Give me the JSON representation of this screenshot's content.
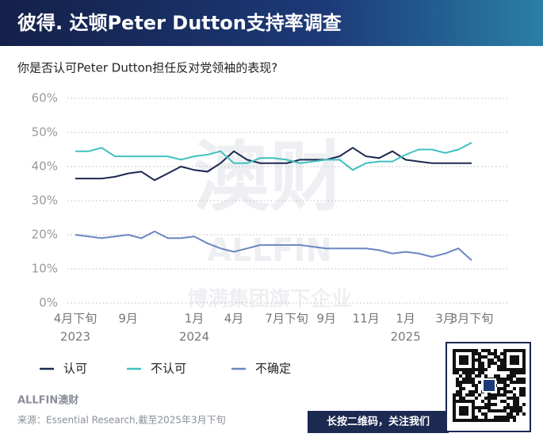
{
  "chart_data": {
    "type": "line",
    "title": "彼得. 达顿Peter Dutton支持率调查",
    "subtitle": "你是否认可Peter Dutton担任反对党领袖的表现?",
    "categories": [
      "4月下旬",
      null,
      null,
      null,
      "9月",
      null,
      null,
      null,
      null,
      "1月",
      null,
      null,
      "4月",
      null,
      null,
      null,
      "7月下旬",
      null,
      null,
      "9月",
      null,
      null,
      "11月",
      null,
      null,
      "1月",
      null,
      null,
      "3月",
      null,
      "3月下旬"
    ],
    "years": [
      "2023",
      "2024",
      "2025"
    ],
    "series": [
      {
        "name": "认可",
        "color": "#1c2951",
        "values": [
          36.5,
          36.5,
          36.5,
          37,
          38,
          38.5,
          36,
          38,
          40,
          39,
          38.5,
          41,
          44.5,
          42,
          41,
          41,
          41,
          42,
          42,
          42,
          43,
          45.5,
          43,
          42.5,
          44.5,
          42,
          41.5,
          41,
          41,
          41,
          41
        ]
      },
      {
        "name": "不认可",
        "color": "#3fc1c0",
        "values": [
          44.5,
          44.5,
          45.5,
          43,
          43,
          43,
          43,
          43,
          42,
          43,
          43.5,
          44.5,
          41,
          41,
          42.5,
          42.5,
          42,
          41,
          41.5,
          42,
          42,
          39,
          41,
          41.5,
          41.5,
          43.5,
          45,
          45,
          44,
          45,
          47
        ]
      },
      {
        "name": "不确定",
        "color": "#6b86c0",
        "values": [
          20,
          19.5,
          19,
          19.5,
          20,
          19,
          21,
          19,
          19,
          19.5,
          17.5,
          16,
          15,
          16,
          17,
          17,
          17,
          17,
          16.5,
          16,
          16,
          16,
          16,
          15.5,
          14.5,
          15,
          14.5,
          13.5,
          14.5,
          16,
          12.5
        ]
      }
    ],
    "ylim": [
      0,
      60
    ],
    "yticks": [
      {
        "value": 0,
        "label": "0%"
      },
      {
        "value": 10,
        "label": "10%"
      },
      {
        "value": 20,
        "label": "20%"
      },
      {
        "value": 30,
        "label": "30%"
      },
      {
        "value": 40,
        "label": "40%"
      },
      {
        "value": 50,
        "label": "50%"
      },
      {
        "value": 60,
        "label": "60%"
      }
    ],
    "grid": true,
    "watermark": [
      "澳财",
      "ALLFIN",
      "博满集团旗下企业"
    ],
    "logo": "ALLFIN澳财",
    "source": "来源：Essential Research,截至2025年3月下旬",
    "qr_caption": "长按二维码，关注我们"
  }
}
